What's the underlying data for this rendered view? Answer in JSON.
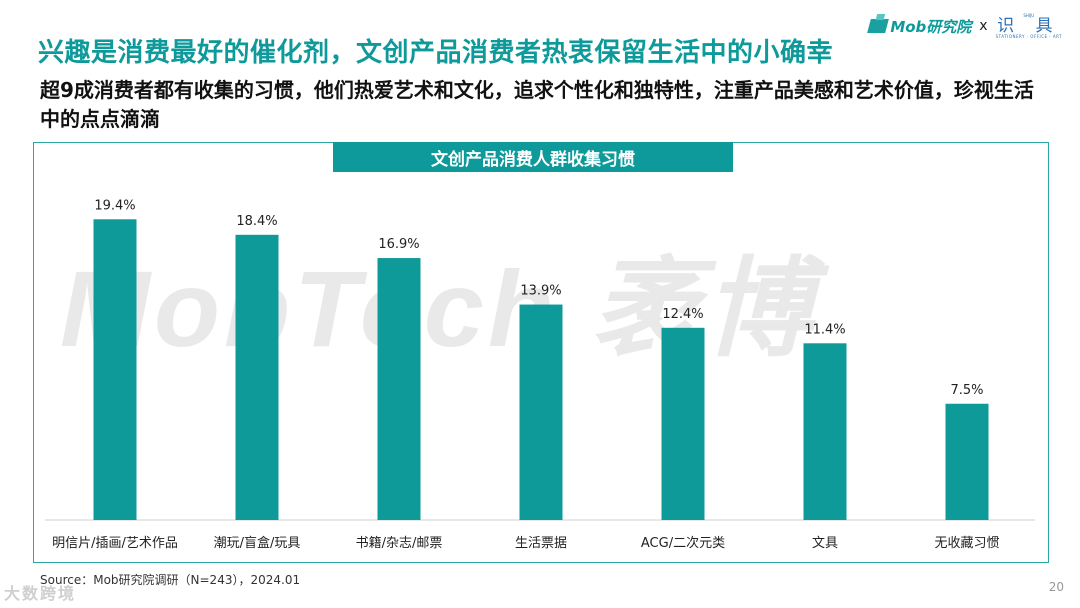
{
  "slide": {
    "title": "兴趣是消费最好的催化剂，文创产品消费者热衷保留生活中的小确幸",
    "subtitle": "超9成消费者都有收集的习惯，他们热爱艺术和文化，追求个性化和独特性，注重产品美感和艺术价值，珍视生活中的点点滴滴",
    "source": "Source：Mob研究院调研（N=243），2024.01",
    "page_number": "20",
    "watermark": "MobTech 袤博",
    "corner_watermark": "大数跨境",
    "logo": {
      "mob_text": "Mob研究院",
      "cross": "x",
      "partner_main": "识 具",
      "partner_top": "SHIJU",
      "partner_bottom": "STATIONERY · OFFICE · ART"
    }
  },
  "colors": {
    "accent": "#0e9a9a",
    "bar": "#0f9a9a"
  },
  "chart_data": {
    "type": "bar",
    "title": "文创产品消费人群收集习惯",
    "categories": [
      "明信片/插画/艺术作品",
      "潮玩/盲盒/玩具",
      "书籍/杂志/邮票",
      "生活票据",
      "ACG/二次元类",
      "文具",
      "无收藏习惯"
    ],
    "values": [
      19.4,
      18.4,
      16.9,
      13.9,
      12.4,
      11.4,
      7.5
    ],
    "value_labels": [
      "19.4%",
      "18.4%",
      "16.9%",
      "13.9%",
      "12.4%",
      "11.4%",
      "7.5%"
    ],
    "unit": "%",
    "ylim": [
      0,
      20
    ],
    "grid": false,
    "legend": "none"
  }
}
